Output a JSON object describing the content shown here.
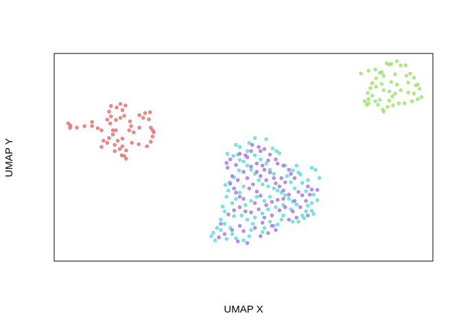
{
  "chart_data": {
    "type": "scatter",
    "title": "",
    "xlabel": "UMAP X",
    "ylabel": "UMAP Y",
    "xlim": [
      0,
      100
    ],
    "ylim": [
      0,
      100
    ],
    "x_ticks_shown": false,
    "y_ticks_shown": false,
    "grid": false,
    "legend": "none",
    "series": [
      {
        "color": "#E06666",
        "points": [
          [
            3.7,
            66.3
          ],
          [
            4.3,
            65.3
          ],
          [
            4.2,
            64.2
          ],
          [
            6.0,
            64.3
          ],
          [
            8.0,
            65.0
          ],
          [
            10.0,
            67.0
          ],
          [
            10.0,
            65.0
          ],
          [
            11.5,
            64.0
          ],
          [
            12.5,
            63.0
          ],
          [
            14.0,
            68.2
          ],
          [
            15.0,
            74.7
          ],
          [
            14.5,
            72.0
          ],
          [
            15.0,
            69.7
          ],
          [
            14.8,
            66.3
          ],
          [
            16.5,
            74.0
          ],
          [
            17.5,
            75.7
          ],
          [
            18.0,
            72.7
          ],
          [
            18.8,
            75.0
          ],
          [
            18.5,
            70.0
          ],
          [
            17.5,
            69.0
          ],
          [
            16.3,
            68.0
          ],
          [
            16.3,
            63.0
          ],
          [
            15.5,
            61.0
          ],
          [
            14.5,
            59.3
          ],
          [
            14.0,
            57.0
          ],
          [
            13.0,
            58.0
          ],
          [
            12.5,
            55.0
          ],
          [
            16.0,
            56.0
          ],
          [
            16.8,
            58.0
          ],
          [
            16.0,
            53.0
          ],
          [
            17.3,
            54.0
          ],
          [
            18.0,
            55.3
          ],
          [
            19.0,
            53.3
          ],
          [
            18.5,
            50.7
          ],
          [
            19.0,
            49.3
          ],
          [
            17.8,
            51.0
          ],
          [
            20.0,
            67.3
          ],
          [
            20.3,
            65.0
          ],
          [
            19.8,
            63.0
          ],
          [
            21.0,
            62.0
          ],
          [
            22.5,
            70.3
          ],
          [
            22.5,
            64.3
          ],
          [
            23.5,
            69.0
          ],
          [
            24.0,
            71.3
          ],
          [
            25.3,
            71.7
          ],
          [
            25.0,
            68.3
          ],
          [
            25.5,
            64.3
          ],
          [
            26.0,
            63.0
          ],
          [
            26.3,
            62.0
          ],
          [
            26.0,
            60.0
          ],
          [
            25.5,
            57.5
          ],
          [
            24.5,
            55.3
          ],
          [
            22.3,
            56.3
          ],
          [
            20.5,
            57.0
          ],
          [
            18.0,
            59.0
          ],
          [
            15.5,
            63.0
          ]
        ]
      },
      {
        "color": "#99E066",
        "points": [
          [
            81.0,
            90.3
          ],
          [
            83.0,
            91.7
          ],
          [
            84.8,
            92.3
          ],
          [
            86.0,
            90.7
          ],
          [
            87.8,
            95.3
          ],
          [
            88.5,
            94.7
          ],
          [
            89.0,
            95.0
          ],
          [
            90.5,
            96.3
          ],
          [
            91.5,
            94.3
          ],
          [
            92.8,
            94.3
          ],
          [
            93.0,
            89.3
          ],
          [
            94.0,
            90.3
          ],
          [
            95.0,
            88.3
          ],
          [
            93.5,
            86.0
          ],
          [
            95.5,
            84.7
          ],
          [
            96.5,
            83.0
          ],
          [
            96.0,
            85.0
          ],
          [
            95.0,
            80.7
          ],
          [
            97.0,
            79.0
          ],
          [
            96.0,
            78.0
          ],
          [
            94.5,
            77.0
          ],
          [
            92.5,
            76.0
          ],
          [
            93.5,
            81.3
          ],
          [
            91.5,
            82.3
          ],
          [
            90.0,
            80.7
          ],
          [
            88.5,
            81.7
          ],
          [
            87.0,
            82.3
          ],
          [
            89.3,
            79.3
          ],
          [
            88.5,
            77.3
          ],
          [
            89.5,
            75.0
          ],
          [
            88.0,
            74.3
          ],
          [
            86.8,
            73.0
          ],
          [
            87.0,
            72.0
          ],
          [
            86.0,
            77.7
          ],
          [
            84.8,
            77.0
          ],
          [
            83.0,
            78.0
          ],
          [
            84.0,
            79.7
          ],
          [
            82.8,
            81.0
          ],
          [
            83.5,
            83.3
          ],
          [
            85.0,
            84.0
          ],
          [
            86.5,
            85.3
          ],
          [
            89.0,
            86.3
          ],
          [
            90.5,
            85.0
          ],
          [
            90.0,
            90.0
          ],
          [
            87.0,
            89.3
          ],
          [
            86.5,
            91.0
          ],
          [
            85.0,
            88.0
          ],
          [
            84.0,
            85.7
          ],
          [
            82.0,
            77.0
          ],
          [
            82.5,
            75.3
          ],
          [
            83.0,
            76.0
          ],
          [
            85.5,
            75.3
          ],
          [
            91.0,
            76.0
          ]
        ]
      },
      {
        "color": "#55D8D8",
        "points": [
          [
            45.7,
            51.7
          ],
          [
            47.3,
            50.7
          ],
          [
            48.5,
            51.3
          ],
          [
            51.5,
            57.0
          ],
          [
            53.0,
            59.3
          ],
          [
            56.0,
            58.7
          ],
          [
            57.7,
            54.3
          ],
          [
            58.7,
            53.0
          ],
          [
            59.5,
            52.0
          ],
          [
            61.0,
            46.0
          ],
          [
            63.0,
            43.7
          ],
          [
            64.5,
            42.7
          ],
          [
            65.0,
            41.7
          ],
          [
            64.0,
            46.0
          ],
          [
            68.0,
            45.0
          ],
          [
            69.0,
            44.0
          ],
          [
            70.0,
            40.0
          ],
          [
            67.0,
            39.0
          ],
          [
            65.5,
            37.7
          ],
          [
            66.5,
            33.7
          ],
          [
            68.5,
            32.0
          ],
          [
            69.5,
            29.3
          ],
          [
            68.0,
            28.0
          ],
          [
            67.0,
            26.7
          ],
          [
            68.0,
            24.3
          ],
          [
            68.5,
            22.7
          ],
          [
            65.5,
            22.0
          ],
          [
            66.0,
            20.7
          ],
          [
            64.5,
            19.0
          ],
          [
            63.0,
            19.0
          ],
          [
            62.5,
            25.0
          ],
          [
            60.0,
            20.0
          ],
          [
            59.0,
            17.7
          ],
          [
            58.0,
            17.0
          ],
          [
            57.0,
            19.0
          ],
          [
            55.5,
            16.0
          ],
          [
            55.0,
            14.0
          ],
          [
            52.0,
            15.0
          ],
          [
            51.5,
            12.0
          ],
          [
            50.0,
            10.0
          ],
          [
            48.0,
            11.0
          ],
          [
            47.0,
            13.0
          ],
          [
            46.5,
            16.0
          ],
          [
            45.0,
            18.0
          ],
          [
            44.0,
            15.0
          ],
          [
            43.0,
            16.0
          ],
          [
            42.0,
            13.7
          ],
          [
            41.5,
            12.0
          ],
          [
            42.5,
            10.0
          ],
          [
            45.5,
            10.7
          ],
          [
            47.5,
            21.7
          ],
          [
            45.0,
            24.0
          ],
          [
            44.5,
            26.3
          ],
          [
            45.5,
            31.0
          ],
          [
            46.0,
            34.0
          ],
          [
            45.2,
            36.7
          ],
          [
            46.3,
            38.0
          ],
          [
            47.5,
            40.3
          ],
          [
            48.8,
            43.7
          ],
          [
            49.0,
            48.7
          ],
          [
            50.0,
            48.0
          ],
          [
            51.0,
            46.0
          ],
          [
            52.0,
            44.0
          ],
          [
            53.0,
            42.0
          ],
          [
            54.0,
            39.0
          ],
          [
            55.0,
            37.0
          ],
          [
            56.5,
            36.0
          ],
          [
            58.0,
            35.0
          ],
          [
            59.0,
            34.0
          ],
          [
            60.0,
            33.0
          ],
          [
            61.0,
            31.7
          ],
          [
            62.0,
            30.0
          ],
          [
            63.0,
            28.7
          ],
          [
            64.0,
            27.3
          ],
          [
            60.5,
            27.0
          ],
          [
            58.5,
            26.0
          ],
          [
            56.5,
            25.0
          ],
          [
            55.0,
            23.0
          ],
          [
            53.0,
            21.0
          ],
          [
            51.0,
            20.0
          ],
          [
            49.5,
            22.0
          ],
          [
            50.5,
            27.0
          ],
          [
            52.0,
            29.0
          ],
          [
            53.5,
            31.0
          ],
          [
            55.5,
            29.0
          ],
          [
            57.0,
            31.0
          ],
          [
            58.0,
            42.0
          ],
          [
            57.0,
            44.0
          ],
          [
            56.0,
            47.0
          ],
          [
            54.5,
            49.0
          ],
          [
            53.0,
            51.0
          ],
          [
            51.0,
            53.0
          ],
          [
            49.0,
            55.0
          ],
          [
            48.0,
            56.0
          ],
          [
            62.5,
            38.0
          ],
          [
            63.5,
            35.0
          ],
          [
            61.5,
            41.0
          ],
          [
            50.0,
            36.0
          ],
          [
            49.0,
            33.0
          ],
          [
            48.0,
            30.0
          ],
          [
            47.0,
            28.0
          ],
          [
            52.5,
            18.0
          ],
          [
            60.5,
            22.0
          ],
          [
            66.5,
            24.0
          ],
          [
            44.0,
            20.0
          ]
        ]
      },
      {
        "color": "#A06CE0",
        "points": [
          [
            45.5,
            47.3
          ],
          [
            46.5,
            49.0
          ],
          [
            45.8,
            45.0
          ],
          [
            48.0,
            46.3
          ],
          [
            49.0,
            51.7
          ],
          [
            50.5,
            51.0
          ],
          [
            51.0,
            50.0
          ],
          [
            52.0,
            53.0
          ],
          [
            52.3,
            56.0
          ],
          [
            54.0,
            55.0
          ],
          [
            54.5,
            53.0
          ],
          [
            55.5,
            54.0
          ],
          [
            57.0,
            51.3
          ],
          [
            56.5,
            48.5
          ],
          [
            55.0,
            46.0
          ],
          [
            53.5,
            47.0
          ],
          [
            52.0,
            45.5
          ],
          [
            53.5,
            43.0
          ],
          [
            55.5,
            44.0
          ],
          [
            57.0,
            42.7
          ],
          [
            58.0,
            40.0
          ],
          [
            60.0,
            40.0
          ],
          [
            61.0,
            38.0
          ],
          [
            59.5,
            36.0
          ],
          [
            60.5,
            34.0
          ],
          [
            62.0,
            32.0
          ],
          [
            64.5,
            33.3
          ],
          [
            65.5,
            31.7
          ],
          [
            66.5,
            29.0
          ],
          [
            67.5,
            32.0
          ],
          [
            68.0,
            34.5
          ],
          [
            69.5,
            34.3
          ],
          [
            67.0,
            36.0
          ],
          [
            63.5,
            40.0
          ],
          [
            62.5,
            42.0
          ],
          [
            62.0,
            44.0
          ],
          [
            60.5,
            46.0
          ],
          [
            59.0,
            47.0
          ],
          [
            58.5,
            49.0
          ],
          [
            47.0,
            41.0
          ],
          [
            46.5,
            37.3
          ],
          [
            47.5,
            35.0
          ],
          [
            48.0,
            33.0
          ],
          [
            49.0,
            31.0
          ],
          [
            50.0,
            30.0
          ],
          [
            51.5,
            35.0
          ],
          [
            52.5,
            37.0
          ],
          [
            53.5,
            33.5
          ],
          [
            54.5,
            31.5
          ],
          [
            56.0,
            27.0
          ],
          [
            57.5,
            28.5
          ],
          [
            59.0,
            29.5
          ],
          [
            61.0,
            26.0
          ],
          [
            63.0,
            24.0
          ],
          [
            65.0,
            26.0
          ],
          [
            67.0,
            22.0
          ],
          [
            64.0,
            21.0
          ],
          [
            62.0,
            20.0
          ],
          [
            59.5,
            24.5
          ],
          [
            57.5,
            22.0
          ],
          [
            55.5,
            21.0
          ],
          [
            54.0,
            25.0
          ],
          [
            52.0,
            23.5
          ],
          [
            50.5,
            24.0
          ],
          [
            49.0,
            26.0
          ],
          [
            47.5,
            24.5
          ],
          [
            46.0,
            22.5
          ],
          [
            44.0,
            18.0
          ],
          [
            45.0,
            13.0
          ],
          [
            47.0,
            15.0
          ],
          [
            49.0,
            17.0
          ],
          [
            50.0,
            14.5
          ],
          [
            53.0,
            16.0
          ],
          [
            54.5,
            12.0
          ],
          [
            56.5,
            13.5
          ],
          [
            58.5,
            15.0
          ],
          [
            51.0,
            8.7
          ],
          [
            48.5,
            9.5
          ],
          [
            43.5,
            11.5
          ],
          [
            58.5,
            37.5
          ],
          [
            56.0,
            39.0
          ],
          [
            54.5,
            41.0
          ],
          [
            51.0,
            40.0
          ],
          [
            50.0,
            43.0
          ],
          [
            48.5,
            39.0
          ],
          [
            60.5,
            30.0
          ],
          [
            63.5,
            29.0
          ],
          [
            53.0,
            28.0
          ],
          [
            55.0,
            18.5
          ],
          [
            57.5,
            17.0
          ]
        ]
      }
    ]
  }
}
